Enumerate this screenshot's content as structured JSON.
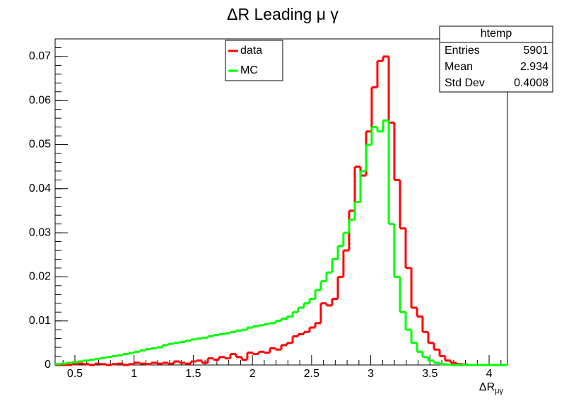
{
  "chart_data": {
    "type": "histogram",
    "title": "ΔR Leading μ γ",
    "xlabel": {
      "base": "ΔR",
      "sub": "μγ"
    },
    "bins": [
      0.333,
      0.381,
      0.429,
      0.476,
      0.524,
      0.572,
      0.62,
      0.667,
      0.715,
      0.763,
      0.811,
      0.859,
      0.906,
      0.954,
      1.002,
      1.05,
      1.097,
      1.145,
      1.193,
      1.241,
      1.289,
      1.336,
      1.384,
      1.432,
      1.48,
      1.527,
      1.575,
      1.623,
      1.671,
      1.718,
      1.766,
      1.814,
      1.862,
      1.91,
      1.957,
      2.005,
      2.053,
      2.101,
      2.148,
      2.196,
      2.244,
      2.292,
      2.34,
      2.387,
      2.435,
      2.483,
      2.531,
      2.578,
      2.626,
      2.674,
      2.722,
      2.769,
      2.817,
      2.865,
      2.913,
      2.961,
      3.008,
      3.056,
      3.104,
      3.152,
      3.199,
      3.247,
      3.295,
      3.343,
      3.391,
      3.438,
      3.486,
      3.534,
      3.582,
      3.629,
      3.677,
      3.725,
      3.773,
      3.82,
      3.868,
      3.916,
      3.964,
      4.012,
      4.059,
      4.107,
      4.155
    ],
    "series": [
      {
        "name": "data",
        "color": "#ff0000",
        "values": [
          0,
          0,
          0,
          0.0002,
          0.0003,
          0.0002,
          0,
          0.0003,
          0.0002,
          0,
          0.0002,
          0.0003,
          0,
          0.0002,
          0.0005,
          0.0003,
          0.0002,
          0.0005,
          0.0003,
          0.0005,
          0.0003,
          0.0008,
          0.0005,
          0.0003,
          0.0008,
          0.001,
          0.0005,
          0.0015,
          0.0012,
          0.0018,
          0.0015,
          0.0025,
          0.0018,
          0.0012,
          0.0028,
          0.0025,
          0.003,
          0.0028,
          0.0038,
          0.0035,
          0.0045,
          0.005,
          0.0065,
          0.007,
          0.0075,
          0.0085,
          0.0095,
          0.014,
          0.0135,
          0.015,
          0.02,
          0.026,
          0.035,
          0.045,
          0.043,
          0.053,
          0.063,
          0.069,
          0.07,
          0.055,
          0.042,
          0.031,
          0.022,
          0.013,
          0.011,
          0.0075,
          0.005,
          0.0035,
          0.002,
          0.001,
          0.0005,
          0.0002,
          0.0001,
          0,
          0,
          0,
          0,
          0,
          0,
          0
        ]
      },
      {
        "name": "MC",
        "color": "#00ff00",
        "values": [
          0.0002,
          0.0003,
          0.0005,
          0.0006,
          0.0008,
          0.001,
          0.0012,
          0.0014,
          0.0016,
          0.0018,
          0.002,
          0.0022,
          0.0025,
          0.0027,
          0.003,
          0.0033,
          0.0036,
          0.0038,
          0.004,
          0.0045,
          0.0048,
          0.005,
          0.0052,
          0.0055,
          0.0058,
          0.006,
          0.0062,
          0.0065,
          0.0068,
          0.007,
          0.0072,
          0.0075,
          0.0078,
          0.008,
          0.0085,
          0.0088,
          0.009,
          0.0093,
          0.0095,
          0.01,
          0.0105,
          0.011,
          0.012,
          0.013,
          0.014,
          0.015,
          0.017,
          0.019,
          0.021,
          0.024,
          0.027,
          0.03,
          0.033,
          0.037,
          0.044,
          0.05,
          0.054,
          0.053,
          0.0555,
          0.032,
          0.02,
          0.012,
          0.008,
          0.005,
          0.003,
          0.0018,
          0.001,
          0.0005,
          0.0002,
          0.0001,
          0,
          0,
          0,
          0,
          0,
          0,
          0,
          0,
          0,
          0
        ]
      }
    ],
    "xlim": [
      0.333,
      4.155
    ],
    "ylim": [
      0,
      0.074
    ],
    "xticks": [
      0.5,
      1,
      1.5,
      2,
      2.5,
      3,
      3.5,
      4
    ],
    "yticks": [
      0,
      0.01,
      0.02,
      0.03,
      0.04,
      0.05,
      0.06,
      0.07
    ],
    "stats": {
      "title": "htemp",
      "rows": [
        [
          "Entries",
          5901
        ],
        [
          "Mean",
          2.934
        ],
        [
          "Std Dev",
          0.4008
        ]
      ]
    }
  }
}
